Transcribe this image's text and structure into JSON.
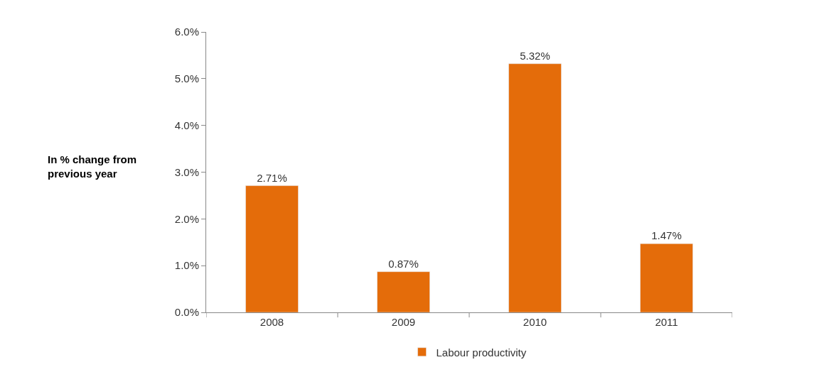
{
  "chart_data": {
    "type": "bar",
    "ylabel": "In % change from previous year",
    "categories": [
      "2008",
      "2009",
      "2010",
      "2011"
    ],
    "series": [
      {
        "name": "Labour productivity",
        "color": "#e46c0a",
        "values": [
          2.71,
          0.87,
          5.32,
          1.47
        ],
        "value_labels": [
          "2.71%",
          "0.87%",
          "5.32%",
          "1.47%"
        ]
      }
    ],
    "ylim": [
      0,
      6
    ],
    "yticks": [
      {
        "value": 0,
        "label": "0.0%"
      },
      {
        "value": 1,
        "label": "1.0%"
      },
      {
        "value": 2,
        "label": "2.0%"
      },
      {
        "value": 3,
        "label": "3.0%"
      },
      {
        "value": 4,
        "label": "4.0%"
      },
      {
        "value": 5,
        "label": "5.0%"
      },
      {
        "value": 6,
        "label": "6.0%"
      }
    ],
    "legend": "bottom"
  }
}
